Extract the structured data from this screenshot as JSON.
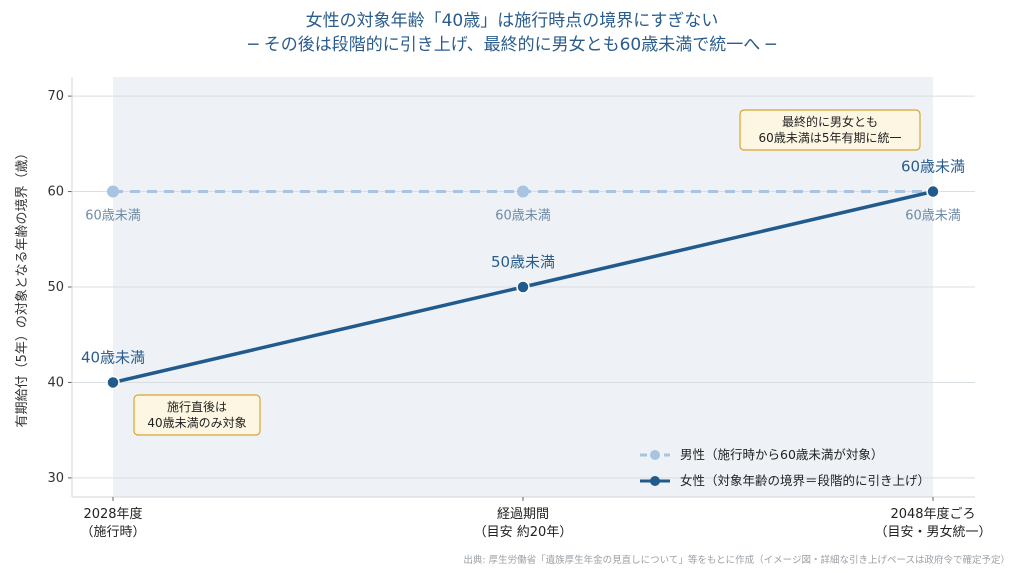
{
  "title_line1": "女性の対象年齢「40歳」は施行時点の境界にすぎない",
  "title_line2": "─ その後は段階的に引き上げ、最終的に男女とも60歳未満で統一へ ─",
  "source": "出典: 厚生労働省「遺族厚生年金の見直しについて」等をもとに作成（イメージ図・詳細な引き上げペースは政府令で確定予定）",
  "colors": {
    "male": "#a8c4e0",
    "female": "#215a8c",
    "panel_bg": "#eef2f6",
    "annotation_fill": "#fdf6e3",
    "annotation_border": "#d8a531",
    "title": "#2a5c8c"
  },
  "chart_data": {
    "type": "line",
    "title": "女性の対象年齢「40歳」は施行時点の境界にすぎない",
    "subtitle": "─ その後は段階的に引き上げ、最終的に男女とも60歳未満で統一へ ─",
    "xlabel": "",
    "ylabel": "有期給付（5年）の対象となる年齢の境界（歳）",
    "categories": [
      [
        "2028年度",
        "（施行時）"
      ],
      [
        "経過期間",
        "（目安 約20年）"
      ],
      [
        "2048年度ごろ",
        "（目安・男女統一）"
      ]
    ],
    "ylim": [
      28,
      72
    ],
    "yticks": [
      30,
      40,
      50,
      60,
      70
    ],
    "grid": true,
    "legend_position": "bottom-right",
    "series": [
      {
        "name": "男性（施行時から60歳未満が対象）",
        "key": "male",
        "values": [
          60,
          60,
          60
        ],
        "style": "dashed",
        "point_labels": [
          "60歳未満",
          "60歳未満",
          "60歳未満"
        ]
      },
      {
        "name": "女性（対象年齢の境界＝段階的に引き上げ）",
        "key": "female",
        "values": [
          40,
          50,
          60
        ],
        "style": "solid",
        "point_labels": [
          "40歳未満",
          "50歳未満",
          "60歳未満"
        ]
      }
    ],
    "annotations": [
      {
        "lines": [
          "施行直後は",
          "40歳未満のみ対象"
        ]
      },
      {
        "lines": [
          "最終的に男女とも",
          "60歳未満は5年有期に統一"
        ]
      }
    ]
  }
}
